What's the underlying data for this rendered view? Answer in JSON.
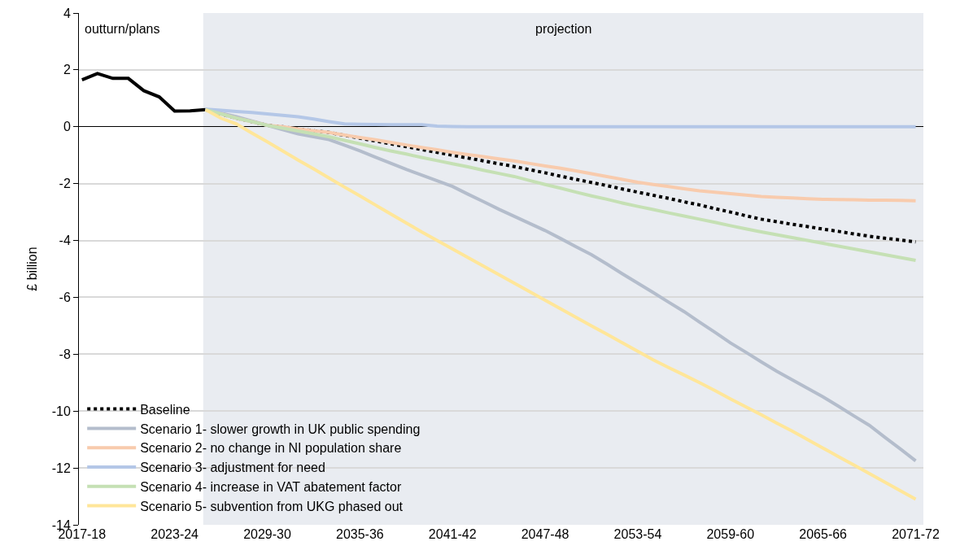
{
  "chart_data": {
    "type": "line",
    "ylabel": "£ billion",
    "categories": [
      "2017-18",
      null,
      null,
      null,
      null,
      null,
      "2023-24",
      null,
      null,
      null,
      null,
      null,
      "2029-30",
      null,
      null,
      null,
      null,
      null,
      "2035-36",
      null,
      null,
      null,
      null,
      null,
      "2041-42",
      null,
      null,
      null,
      null,
      null,
      "2047-48",
      null,
      null,
      null,
      null,
      null,
      "2053-54",
      null,
      null,
      null,
      null,
      null,
      "2059-60",
      null,
      null,
      null,
      null,
      null,
      "2065-66",
      null,
      null,
      null,
      null,
      null,
      "2071-72"
    ],
    "ylim": [
      -14,
      4
    ],
    "yticks": [
      -14,
      -12,
      -10,
      -8,
      -6,
      -4,
      -2,
      0,
      2,
      4
    ],
    "grid": "y",
    "legend": "bottom left",
    "marker": "none",
    "annotations": [
      "outturn/plans",
      "projection"
    ],
    "series": [
      {
        "color": "#000000",
        "values": [
          1.65,
          1.87,
          1.7,
          1.7,
          1.27,
          1.05,
          0.55,
          0.56,
          0.6,
          null,
          null,
          null,
          null,
          null,
          null,
          null,
          null,
          null,
          null,
          null,
          null,
          null,
          null,
          null,
          null,
          null,
          null,
          null,
          null,
          null,
          null,
          null,
          null,
          null,
          null,
          null,
          null,
          null,
          null,
          null,
          null,
          null,
          null,
          null,
          null,
          null,
          null,
          null,
          null,
          null,
          null,
          null,
          null,
          null,
          null
        ]
      },
      {
        "name": "Baseline",
        "color": "#000000",
        "line_style": "dotted",
        "values": [
          null,
          null,
          null,
          null,
          null,
          null,
          null,
          null,
          0.6,
          0.45,
          0.3,
          0.18,
          0.05,
          0,
          -0.08,
          -0.14,
          -0.2,
          -0.3,
          -0.4,
          -0.5,
          -0.6,
          -0.7,
          -0.8,
          -0.9,
          -1.0,
          -1.1,
          -1.2,
          -1.3,
          -1.4,
          -1.51,
          -1.62,
          -1.74,
          -1.85,
          -1.96,
          -2.07,
          -2.19,
          -2.3,
          -2.41,
          -2.52,
          -2.64,
          -2.75,
          -2.88,
          -3.0,
          -3.13,
          -3.25,
          -3.34,
          -3.43,
          -3.51,
          -3.6,
          -3.68,
          -3.77,
          -3.85,
          -3.92,
          -3.98,
          -4.05
        ]
      },
      {
        "name": "Scenario 1- slower growth in UK public spending",
        "color": "#b4bdcc",
        "values": [
          null,
          null,
          null,
          null,
          null,
          null,
          null,
          null,
          0.6,
          0.48,
          0.35,
          0.2,
          0.05,
          -0.1,
          -0.25,
          -0.35,
          -0.45,
          -0.65,
          -0.85,
          -1.07,
          -1.28,
          -1.5,
          -1.7,
          -1.9,
          -2.1,
          -2.37,
          -2.63,
          -2.9,
          -3.15,
          -3.4,
          -3.65,
          -3.93,
          -4.22,
          -4.5,
          -4.83,
          -5.17,
          -5.5,
          -5.83,
          -6.17,
          -6.5,
          -6.87,
          -7.23,
          -7.6,
          -7.93,
          -8.27,
          -8.6,
          -8.9,
          -9.2,
          -9.5,
          -9.83,
          -10.17,
          -10.5,
          -10.92,
          -11.33,
          -11.75
        ]
      },
      {
        "name": "Scenario 2- no change in NI population share",
        "color": "#f8cbad",
        "values": [
          null,
          null,
          null,
          null,
          null,
          null,
          null,
          null,
          0.6,
          0.45,
          0.3,
          0.18,
          0.05,
          0,
          -0.08,
          -0.14,
          -0.2,
          -0.29,
          -0.38,
          -0.46,
          -0.55,
          -0.64,
          -0.73,
          -0.81,
          -0.9,
          -0.98,
          -1.05,
          -1.13,
          -1.2,
          -1.29,
          -1.38,
          -1.46,
          -1.55,
          -1.65,
          -1.75,
          -1.85,
          -1.95,
          -2.03,
          -2.1,
          -2.18,
          -2.25,
          -2.3,
          -2.35,
          -2.4,
          -2.45,
          -2.48,
          -2.5,
          -2.53,
          -2.55,
          -2.56,
          -2.57,
          -2.58,
          -2.58,
          -2.59,
          -2.6
        ]
      },
      {
        "name": "Scenario 3- adjustment for need",
        "color": "#b4c7e7",
        "values": [
          null,
          null,
          null,
          null,
          null,
          null,
          null,
          null,
          0.62,
          0.58,
          0.54,
          0.5,
          0.45,
          0.4,
          0.35,
          0.27,
          0.18,
          0.1,
          0.09,
          0.08,
          0.07,
          0.07,
          0.07,
          0.02,
          0.01,
          0,
          0,
          0,
          0,
          0,
          0,
          0,
          0,
          0,
          0,
          0,
          0,
          0,
          0,
          0,
          0,
          0,
          0,
          0,
          0,
          0,
          0,
          0,
          0,
          0,
          0,
          0,
          0,
          0,
          0
        ]
      },
      {
        "name": "Scenario 4- increase in VAT abatement factor",
        "color": "#c5e0b4",
        "values": [
          null,
          null,
          null,
          null,
          null,
          null,
          null,
          null,
          0.6,
          0.45,
          0.3,
          0.18,
          0.05,
          -0.05,
          -0.15,
          -0.25,
          -0.35,
          -0.48,
          -0.6,
          -0.73,
          -0.85,
          -0.96,
          -1.08,
          -1.19,
          -1.3,
          -1.41,
          -1.53,
          -1.64,
          -1.75,
          -1.89,
          -2.03,
          -2.16,
          -2.3,
          -2.43,
          -2.55,
          -2.68,
          -2.8,
          -2.91,
          -3.03,
          -3.14,
          -3.25,
          -3.36,
          -3.48,
          -3.59,
          -3.7,
          -3.8,
          -3.9,
          -4.0,
          -4.1,
          -4.2,
          -4.3,
          -4.4,
          -4.5,
          -4.6,
          -4.7
        ]
      },
      {
        "name": "Scenario 5- subvention from UKG phased out",
        "color": "#ffe699",
        "values": [
          null,
          null,
          null,
          null,
          null,
          null,
          null,
          null,
          0.6,
          0.3,
          0.1,
          -0.22,
          -0.53,
          -0.85,
          -1.17,
          -1.48,
          -1.8,
          -2.12,
          -2.43,
          -2.75,
          -3.07,
          -3.38,
          -3.7,
          -4.0,
          -4.3,
          -4.6,
          -4.9,
          -5.2,
          -5.5,
          -5.8,
          -6.1,
          -6.4,
          -6.7,
          -7.0,
          -7.3,
          -7.6,
          -7.9,
          -8.2,
          -8.47,
          -8.73,
          -9.0,
          -9.28,
          -9.57,
          -9.85,
          -10.13,
          -10.42,
          -10.7,
          -11.0,
          -11.3,
          -11.6,
          -11.9,
          -12.2,
          -12.5,
          -12.8,
          -13.1
        ]
      }
    ]
  }
}
